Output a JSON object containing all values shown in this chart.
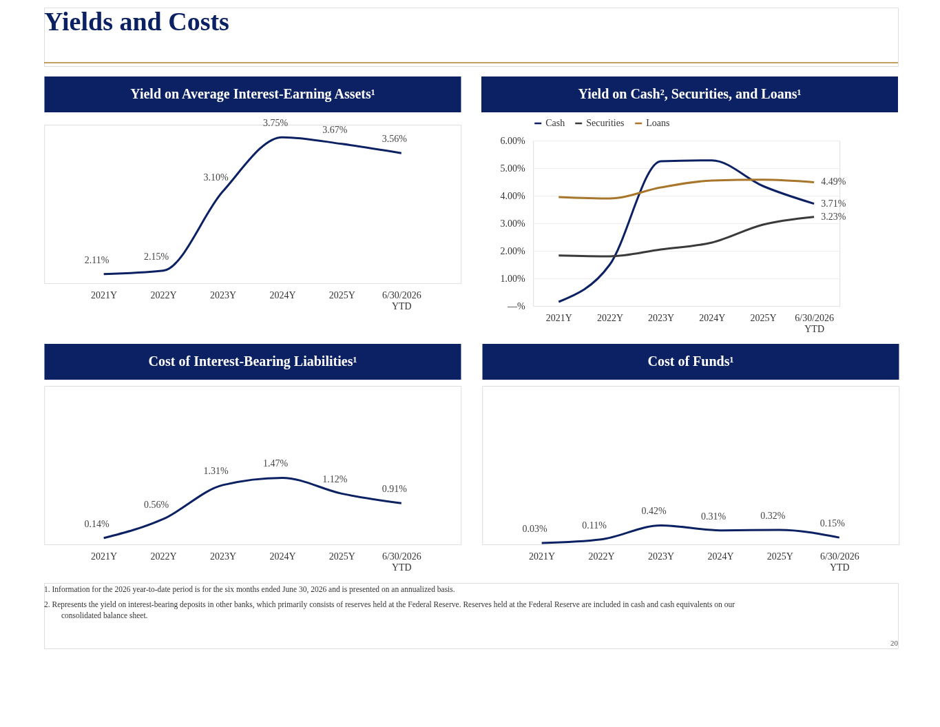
{
  "chart_data": [
    {
      "type": "line",
      "title": "Yield on Average Interest-Earning Assets¹",
      "annotations": [
        "Yields and Costs"
      ],
      "categories": [
        "2021Y",
        "2022Y",
        "2023Y",
        "2024Y",
        "2025Y",
        "6/30/2026 YTD"
      ],
      "values": [
        2.11,
        2.15,
        3.1,
        3.75,
        3.67,
        3.56
      ],
      "color": "#0c2163",
      "value_labels": [
        "2.11%",
        "2.15%",
        "3.10%",
        "3.75%",
        "3.67%",
        "3.56%"
      ],
      "ylim": [
        2.0,
        3.9
      ],
      "tick_labels": "x",
      "marker": "none"
    },
    {
      "type": "line",
      "title": "Yield on Cash², Securities, and Loans¹",
      "categories": [
        "2021Y",
        "2022Y",
        "2023Y",
        "2024Y",
        "2025Y",
        "6/30/2026 YTD"
      ],
      "series": [
        {
          "name": "Cash",
          "color": "#0c2163",
          "values": [
            0.15,
            1.5,
            5.25,
            5.28,
            4.35,
            3.71
          ],
          "value_labels": [
            null,
            null,
            null,
            null,
            null,
            "3.71%"
          ]
        },
        {
          "name": "Securities",
          "color": "#3a3a3a",
          "values": [
            1.83,
            1.8,
            2.05,
            2.3,
            2.95,
            3.23
          ],
          "value_labels": [
            null,
            null,
            null,
            null,
            null,
            "3.23%"
          ]
        },
        {
          "name": "Loans",
          "color": "#a8762a",
          "values": [
            3.95,
            3.9,
            4.3,
            4.55,
            4.58,
            4.49
          ],
          "value_labels": [
            null,
            null,
            null,
            null,
            null,
            "4.49%"
          ]
        }
      ],
      "ylim": [
        0,
        6.0
      ],
      "yticks": [
        {
          "value": 0,
          "label": "—%"
        },
        {
          "value": 1,
          "label": "1.00%"
        },
        {
          "value": 2,
          "label": "2.00%"
        },
        {
          "value": 3,
          "label": "3.00%"
        },
        {
          "value": 4,
          "label": "4.00%"
        },
        {
          "value": 5,
          "label": "5.00%"
        },
        {
          "value": 6,
          "label": "6.00%"
        }
      ],
      "grid": "y",
      "legend": "top",
      "marker": "none"
    },
    {
      "type": "line",
      "title": "Cost of Interest-Bearing Liabilities¹",
      "categories": [
        "2021Y",
        "2022Y",
        "2023Y",
        "2024Y",
        "2025Y",
        "6/30/2026 YTD"
      ],
      "values": [
        0.14,
        0.56,
        1.31,
        1.47,
        1.12,
        0.91
      ],
      "color": "#0c2163",
      "value_labels": [
        "0.14%",
        "0.56%",
        "1.31%",
        "1.47%",
        "1.12%",
        "0.91%"
      ],
      "ylim": [
        0,
        3.5
      ],
      "tick_labels": "x",
      "marker": "none"
    },
    {
      "type": "line",
      "title": "Cost of Funds¹",
      "categories": [
        "2021Y",
        "2022Y",
        "2023Y",
        "2024Y",
        "2025Y",
        "6/30/2026 YTD"
      ],
      "values": [
        0.03,
        0.11,
        0.42,
        0.31,
        0.32,
        0.15
      ],
      "color": "#0c2163",
      "value_labels": [
        "0.03%",
        "0.11%",
        "0.42%",
        "0.31%",
        "0.32%",
        "0.15%"
      ],
      "ylim": [
        0,
        3.5
      ],
      "tick_labels": "x",
      "marker": "none",
      "annotations": [
        "1.  Information for the 2026 year-to-date period is for the six months ended June 30, 2026 and is presented on an annualized basis.",
        "2.  Represents the yield on interest-bearing deposits in other banks, which primarily consists of reserves held at the Federal Reserve. Reserves held at the Federal Reserve are included in cash and cash equivalents on our consolidated balance sheet.",
        "20"
      ]
    }
  ]
}
